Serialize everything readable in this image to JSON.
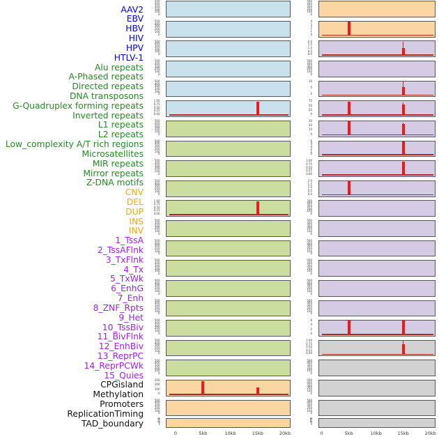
{
  "styles": {
    "background": "#FFFFFF",
    "panel_fill": {
      "virus": "#C9E1EC",
      "repeat": "#CBDEA0",
      "sv": "#FBD5A2",
      "chrom": "#D5CBE5",
      "other": "#D2D2D2"
    },
    "label_color": {
      "virus": "#0000EE",
      "repeat": "#228B22",
      "sv": "#FFA500",
      "chrom": "#A020F0",
      "other": "#111111"
    },
    "panel_border": "#565656",
    "spike_color": "#EE1A1A",
    "baseline_color": "#B02A24",
    "tick_color": "#3C3C3C",
    "axis_label_color": "#333333"
  },
  "chart_data": {
    "type": "bar",
    "subtype": "genomic-signal-track-grid",
    "layout_hint": "44 tracks split into two columns of 22 panels; red spikes mark signal peaks at 5kb and 15kb; x range 0-20kb per panel",
    "columns_split_index": 22,
    "x_axis": {
      "tick_labels": [
        "0",
        "5kb",
        "10kb",
        "15kb",
        "20kb"
      ],
      "range_kb": [
        0,
        20
      ]
    },
    "tracks": [
      {
        "label": "AAV2",
        "group": "virus",
        "yticks": [
          "500",
          "400",
          "300",
          "200",
          "100",
          "0"
        ],
        "spikes": [],
        "baseline": false
      },
      {
        "label": "EBV",
        "group": "virus",
        "yticks": [
          "500",
          "400",
          "300",
          "200",
          "100",
          "0"
        ],
        "spikes": [],
        "baseline": false
      },
      {
        "label": "HBV",
        "group": "virus",
        "yticks": [
          "500",
          "400",
          "300",
          "200",
          "100",
          "0"
        ],
        "spikes": [],
        "baseline": false
      },
      {
        "label": "HIV",
        "group": "virus",
        "yticks": [
          "500",
          "400",
          "300",
          "200",
          "100",
          "0"
        ],
        "spikes": [],
        "baseline": false
      },
      {
        "label": "HPV",
        "group": "virus",
        "yticks": [
          "500",
          "400",
          "300",
          "200",
          "100",
          "0"
        ],
        "spikes": [],
        "baseline": false
      },
      {
        "label": "HTLV-1",
        "group": "virus",
        "yticks": [
          "1.00",
          "0.75",
          "0.50",
          "0.25",
          "0.00"
        ],
        "spikes": [
          {
            "x_kb": 15,
            "h": 1.0,
            "thin": false,
            "thick_h": 0
          }
        ],
        "baseline": true
      },
      {
        "label": "Alu repeats",
        "group": "repeat",
        "yticks": [
          "500",
          "400",
          "300",
          "200",
          "100",
          "0"
        ],
        "spikes": [],
        "baseline": false
      },
      {
        "label": "A-Phased repeats",
        "group": "repeat",
        "yticks": [
          "500",
          "400",
          "300",
          "200",
          "100",
          "0"
        ],
        "spikes": [],
        "baseline": false
      },
      {
        "label": "Directed repeats",
        "group": "repeat",
        "yticks": [
          "500",
          "400",
          "300",
          "200",
          "100",
          "0"
        ],
        "spikes": [],
        "baseline": false
      },
      {
        "label": "DNA transposons",
        "group": "repeat",
        "yticks": [
          "500",
          "400",
          "300",
          "200",
          "100",
          "0"
        ],
        "spikes": [],
        "baseline": false
      },
      {
        "label": "G-Quadruplex forming repeats",
        "group": "repeat",
        "yticks": [
          "1.00",
          "0.75",
          "0.50",
          "0.25",
          "0.00"
        ],
        "spikes": [
          {
            "x_kb": 15,
            "h": 1.0,
            "thin": false,
            "thick_h": 0
          }
        ],
        "baseline": true
      },
      {
        "label": "Inverted repeats",
        "group": "repeat",
        "yticks": [
          "500",
          "400",
          "300",
          "200",
          "100",
          "0"
        ],
        "spikes": [],
        "baseline": false
      },
      {
        "label": "L1 repeats",
        "group": "repeat",
        "yticks": [
          "500",
          "400",
          "300",
          "200",
          "100",
          "0"
        ],
        "spikes": [],
        "baseline": false
      },
      {
        "label": "L2 repeats",
        "group": "repeat",
        "yticks": [
          "500",
          "400",
          "300",
          "200",
          "100",
          "0"
        ],
        "spikes": [],
        "baseline": false
      },
      {
        "label": "Low_complexity A/T rich regions",
        "group": "repeat",
        "yticks": [
          "500",
          "400",
          "300",
          "200",
          "100",
          "0"
        ],
        "spikes": [],
        "baseline": false
      },
      {
        "label": "Microsatellites",
        "group": "repeat",
        "yticks": [
          "500",
          "400",
          "300",
          "200",
          "100",
          "0"
        ],
        "spikes": [],
        "baseline": false
      },
      {
        "label": "MIR repeats",
        "group": "repeat",
        "yticks": [
          "500",
          "400",
          "300",
          "200",
          "100",
          "0"
        ],
        "spikes": [],
        "baseline": false
      },
      {
        "label": "Mirror repeats",
        "group": "repeat",
        "yticks": [
          "500",
          "400",
          "300",
          "200",
          "100",
          "0"
        ],
        "spikes": [],
        "baseline": false
      },
      {
        "label": "Z-DNA motifs",
        "group": "repeat",
        "yticks": [
          "500",
          "400",
          "300",
          "200",
          "100",
          "0"
        ],
        "spikes": [],
        "baseline": false
      },
      {
        "label": "CNV",
        "group": "sv",
        "yticks": [
          "300",
          "200",
          "100",
          "0"
        ],
        "spikes": [
          {
            "x_kb": 5,
            "h": 0.97,
            "thin": false,
            "thick_h": 0
          },
          {
            "x_kb": 15,
            "h": 0.5,
            "thin": false,
            "thick_h": 0
          }
        ],
        "baseline": true
      },
      {
        "label": "DEL",
        "group": "sv",
        "yticks": [
          "500",
          "400",
          "300",
          "200",
          "100",
          "0"
        ],
        "spikes": [],
        "baseline": false
      },
      {
        "label": "DUP",
        "group": "sv",
        "yticks": [
          "35",
          "30",
          "25",
          "20",
          "15",
          "10",
          "5",
          "0"
        ],
        "spikes": [],
        "baseline": false
      },
      {
        "label": "INS",
        "group": "sv",
        "yticks": [
          "500",
          "400",
          "300",
          "200",
          "100",
          "0"
        ],
        "spikes": [],
        "baseline": false
      },
      {
        "label": "INV",
        "group": "sv",
        "yticks": [
          "4",
          "3",
          "2",
          "1",
          "0"
        ],
        "spikes": [
          {
            "x_kb": 5,
            "h": 1.0,
            "thin": false,
            "thick_h": 0
          }
        ],
        "baseline": true
      },
      {
        "label": "1_TssA",
        "group": "chrom",
        "yticks": [
          "2.0",
          "1.5",
          "1.0",
          "0.5",
          "0.0"
        ],
        "spikes": [
          {
            "x_kb": 15,
            "h": 1.0,
            "thin": true,
            "thick_h": 0.52
          }
        ],
        "baseline": true
      },
      {
        "label": "2_TssAFlnk",
        "group": "chrom",
        "yticks": [
          "500",
          "400",
          "300",
          "200",
          "100",
          "0"
        ],
        "spikes": [],
        "baseline": false
      },
      {
        "label": "3_TxFlnk",
        "group": "chrom",
        "yticks": [
          "10",
          "5",
          "0"
        ],
        "spikes": [
          {
            "x_kb": 15,
            "h": 1.0,
            "thin": true,
            "thick_h": 0.6
          }
        ],
        "baseline": true
      },
      {
        "label": "4_Tx",
        "group": "chrom",
        "yticks": [
          "75",
          "50",
          "25",
          "0"
        ],
        "spikes": [
          {
            "x_kb": 5,
            "h": 1.0,
            "thin": false,
            "thick_h": 0
          },
          {
            "x_kb": 15,
            "h": 0.95,
            "thin": true,
            "thick_h": 0.8
          }
        ],
        "baseline": true
      },
      {
        "label": "5_TxWk",
        "group": "chrom",
        "yticks": [
          "30",
          "20",
          "10",
          "0"
        ],
        "spikes": [
          {
            "x_kb": 5,
            "h": 1.0,
            "thin": false,
            "thick_h": 0
          },
          {
            "x_kb": 15,
            "h": 0.93,
            "thin": true,
            "thick_h": 0.82
          }
        ],
        "baseline": true
      },
      {
        "label": "6_EnhG",
        "group": "chrom",
        "yticks": [
          "5",
          "4",
          "3",
          "2",
          "1",
          "0"
        ],
        "spikes": [
          {
            "x_kb": 15,
            "h": 1.0,
            "thin": false,
            "thick_h": 0
          }
        ],
        "baseline": true
      },
      {
        "label": "7_Enh",
        "group": "chrom",
        "yticks": [
          "1.00",
          "0.75",
          "0.50",
          "0.25",
          "0.00"
        ],
        "spikes": [
          {
            "x_kb": 15,
            "h": 1.0,
            "thin": false,
            "thick_h": 0
          }
        ],
        "baseline": true
      },
      {
        "label": "8_ZNF_Rpts",
        "group": "chrom",
        "yticks": [
          "2.0",
          "1.5",
          "1.0",
          "0.5",
          "0.0"
        ],
        "spikes": [
          {
            "x_kb": 5,
            "h": 1.0,
            "thin": false,
            "thick_h": 0
          }
        ],
        "baseline": true
      },
      {
        "label": "9_Het",
        "group": "chrom",
        "yticks": [
          "500",
          "400",
          "300",
          "200",
          "100",
          "0"
        ],
        "spikes": [],
        "baseline": false
      },
      {
        "label": "10_TssBiv",
        "group": "chrom",
        "yticks": [
          "500",
          "400",
          "300",
          "200",
          "100",
          "0"
        ],
        "spikes": [],
        "baseline": false
      },
      {
        "label": "11_BivFlnk",
        "group": "chrom",
        "yticks": [
          "500",
          "400",
          "300",
          "200",
          "100",
          "0"
        ],
        "spikes": [],
        "baseline": false
      },
      {
        "label": "12_EnhBiv",
        "group": "chrom",
        "yticks": [
          "500",
          "400",
          "300",
          "200",
          "100",
          "0"
        ],
        "spikes": [],
        "baseline": false
      },
      {
        "label": "13_ReprPC",
        "group": "chrom",
        "yticks": [
          "500",
          "400",
          "300",
          "200",
          "100",
          "0"
        ],
        "spikes": [],
        "baseline": false
      },
      {
        "label": "14_ReprPCWk",
        "group": "chrom",
        "yticks": [
          "500",
          "400",
          "300",
          "200",
          "100",
          "0"
        ],
        "spikes": [],
        "baseline": false
      },
      {
        "label": "15_Quies",
        "group": "chrom",
        "yticks": [
          "6",
          "4",
          "2",
          "0"
        ],
        "spikes": [
          {
            "x_kb": 5,
            "h": 1.0,
            "thin": false,
            "thick_h": 0
          },
          {
            "x_kb": 15,
            "h": 1.0,
            "thin": false,
            "thick_h": 0
          }
        ],
        "baseline": true
      },
      {
        "label": "CPGisland",
        "group": "other",
        "yticks": [
          "1.00",
          "0.75",
          "0.50",
          "0.25",
          "0.00"
        ],
        "spikes": [
          {
            "x_kb": 15,
            "h": 1.0,
            "thin": true,
            "thick_h": 0.75
          }
        ],
        "baseline": true
      },
      {
        "label": "Methylation",
        "group": "other",
        "yticks": [
          "500",
          "400",
          "300",
          "200",
          "100",
          "0"
        ],
        "spikes": [],
        "baseline": false
      },
      {
        "label": "Promoters",
        "group": "other",
        "yticks": [
          "500",
          "400",
          "300",
          "200",
          "100",
          "0"
        ],
        "spikes": [],
        "baseline": false
      },
      {
        "label": "ReplicationTiming",
        "group": "other",
        "yticks": [
          "500",
          "400",
          "300",
          "200",
          "100",
          "0"
        ],
        "spikes": [],
        "baseline": false
      },
      {
        "label": "TAD_boundary",
        "group": "other",
        "yticks": [
          "35",
          "30",
          "25",
          "20",
          "15",
          "10",
          "5",
          "0"
        ],
        "spikes": [],
        "baseline": false
      }
    ]
  }
}
